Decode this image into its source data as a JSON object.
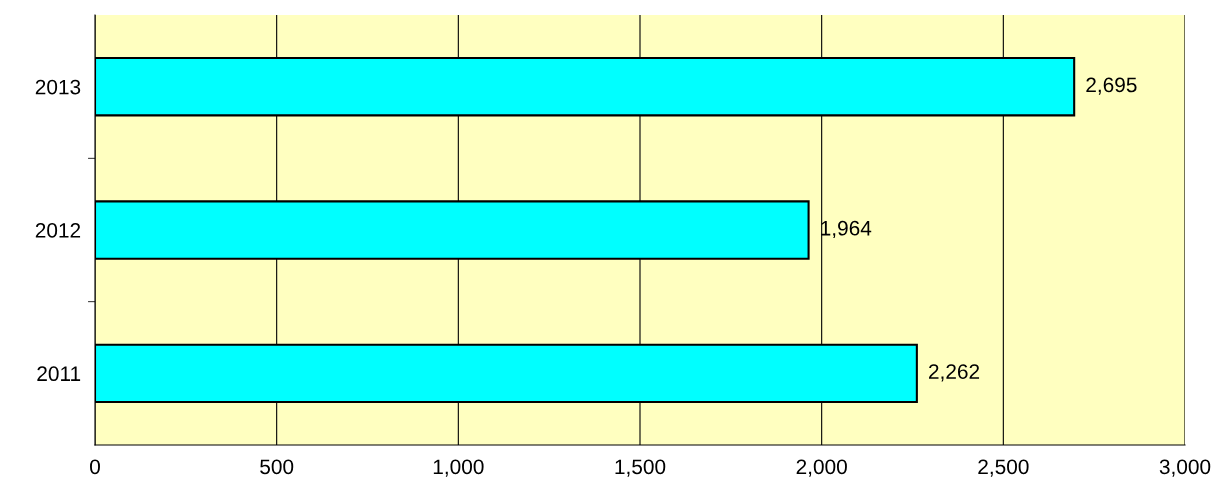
{
  "chart_data": {
    "type": "bar",
    "orientation": "horizontal",
    "categories": [
      "2013",
      "2012",
      "2011"
    ],
    "values": [
      2695,
      1964,
      2262
    ],
    "value_labels": [
      "2,695",
      "1,964",
      "2,262"
    ],
    "color": "#00ffff",
    "xlim": [
      0,
      3000
    ],
    "xticks": [
      0,
      500,
      {
        "value": 1000,
        "label": "1,000"
      },
      {
        "value": 1500,
        "label": "1,500"
      },
      {
        "value": 2000,
        "label": "2,000"
      },
      {
        "value": 2500,
        "label": "2,500"
      },
      {
        "value": 3000,
        "label": "3,000"
      }
    ],
    "grid": "x",
    "legend": false
  }
}
